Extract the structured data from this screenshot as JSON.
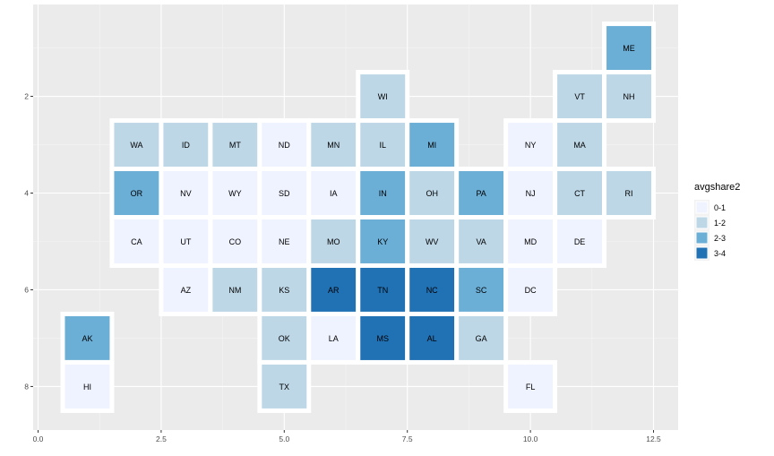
{
  "chart_data": {
    "type": "heatmap",
    "title": "",
    "xlabel": "",
    "ylabel": "",
    "xlim": [
      -0.1,
      13.0
    ],
    "ylim": [
      0.1,
      8.9
    ],
    "y_reversed": true,
    "x_ticks": [
      0.0,
      2.5,
      5.0,
      7.5,
      10.0,
      12.5
    ],
    "x_tick_labels": [
      "0.0",
      "2.5",
      "5.0",
      "7.5",
      "10.0",
      "12.5"
    ],
    "y_ticks": [
      2,
      4,
      6,
      8
    ],
    "y_tick_labels": [
      "2",
      "4",
      "6",
      "8"
    ],
    "grid": true,
    "legend": {
      "title": "avgshare2",
      "position": "right",
      "entries": [
        {
          "label": "0-1",
          "color": "#eff3ff"
        },
        {
          "label": "1-2",
          "color": "#bdd7e7"
        },
        {
          "label": "2-3",
          "color": "#6baed6"
        },
        {
          "label": "3-4",
          "color": "#2171b5"
        }
      ]
    },
    "tiles": [
      {
        "state": "ME",
        "x": 12,
        "y": 1,
        "category": "2-3"
      },
      {
        "state": "WI",
        "x": 7,
        "y": 2,
        "category": "1-2"
      },
      {
        "state": "VT",
        "x": 11,
        "y": 2,
        "category": "1-2"
      },
      {
        "state": "NH",
        "x": 12,
        "y": 2,
        "category": "1-2"
      },
      {
        "state": "WA",
        "x": 2,
        "y": 3,
        "category": "1-2"
      },
      {
        "state": "ID",
        "x": 3,
        "y": 3,
        "category": "1-2"
      },
      {
        "state": "MT",
        "x": 4,
        "y": 3,
        "category": "1-2"
      },
      {
        "state": "ND",
        "x": 5,
        "y": 3,
        "category": "0-1"
      },
      {
        "state": "MN",
        "x": 6,
        "y": 3,
        "category": "1-2"
      },
      {
        "state": "IL",
        "x": 7,
        "y": 3,
        "category": "1-2"
      },
      {
        "state": "MI",
        "x": 8,
        "y": 3,
        "category": "2-3"
      },
      {
        "state": "NY",
        "x": 10,
        "y": 3,
        "category": "0-1"
      },
      {
        "state": "MA",
        "x": 11,
        "y": 3,
        "category": "1-2"
      },
      {
        "state": "OR",
        "x": 2,
        "y": 4,
        "category": "2-3"
      },
      {
        "state": "NV",
        "x": 3,
        "y": 4,
        "category": "0-1"
      },
      {
        "state": "WY",
        "x": 4,
        "y": 4,
        "category": "0-1"
      },
      {
        "state": "SD",
        "x": 5,
        "y": 4,
        "category": "0-1"
      },
      {
        "state": "IA",
        "x": 6,
        "y": 4,
        "category": "0-1"
      },
      {
        "state": "IN",
        "x": 7,
        "y": 4,
        "category": "2-3"
      },
      {
        "state": "OH",
        "x": 8,
        "y": 4,
        "category": "1-2"
      },
      {
        "state": "PA",
        "x": 9,
        "y": 4,
        "category": "2-3"
      },
      {
        "state": "NJ",
        "x": 10,
        "y": 4,
        "category": "0-1"
      },
      {
        "state": "CT",
        "x": 11,
        "y": 4,
        "category": "1-2"
      },
      {
        "state": "RI",
        "x": 12,
        "y": 4,
        "category": "1-2"
      },
      {
        "state": "CA",
        "x": 2,
        "y": 5,
        "category": "0-1"
      },
      {
        "state": "UT",
        "x": 3,
        "y": 5,
        "category": "0-1"
      },
      {
        "state": "CO",
        "x": 4,
        "y": 5,
        "category": "0-1"
      },
      {
        "state": "NE",
        "x": 5,
        "y": 5,
        "category": "0-1"
      },
      {
        "state": "MO",
        "x": 6,
        "y": 5,
        "category": "1-2"
      },
      {
        "state": "KY",
        "x": 7,
        "y": 5,
        "category": "2-3"
      },
      {
        "state": "WV",
        "x": 8,
        "y": 5,
        "category": "1-2"
      },
      {
        "state": "VA",
        "x": 9,
        "y": 5,
        "category": "1-2"
      },
      {
        "state": "MD",
        "x": 10,
        "y": 5,
        "category": "0-1"
      },
      {
        "state": "DE",
        "x": 11,
        "y": 5,
        "category": "0-1"
      },
      {
        "state": "AZ",
        "x": 3,
        "y": 6,
        "category": "0-1"
      },
      {
        "state": "NM",
        "x": 4,
        "y": 6,
        "category": "1-2"
      },
      {
        "state": "KS",
        "x": 5,
        "y": 6,
        "category": "1-2"
      },
      {
        "state": "AR",
        "x": 6,
        "y": 6,
        "category": "3-4"
      },
      {
        "state": "TN",
        "x": 7,
        "y": 6,
        "category": "3-4"
      },
      {
        "state": "NC",
        "x": 8,
        "y": 6,
        "category": "3-4"
      },
      {
        "state": "SC",
        "x": 9,
        "y": 6,
        "category": "2-3"
      },
      {
        "state": "DC",
        "x": 10,
        "y": 6,
        "category": "0-1"
      },
      {
        "state": "AK",
        "x": 1,
        "y": 7,
        "category": "2-3"
      },
      {
        "state": "OK",
        "x": 5,
        "y": 7,
        "category": "1-2"
      },
      {
        "state": "LA",
        "x": 6,
        "y": 7,
        "category": "0-1"
      },
      {
        "state": "MS",
        "x": 7,
        "y": 7,
        "category": "3-4"
      },
      {
        "state": "AL",
        "x": 8,
        "y": 7,
        "category": "3-4"
      },
      {
        "state": "GA",
        "x": 9,
        "y": 7,
        "category": "1-2"
      },
      {
        "state": "HI",
        "x": 1,
        "y": 8,
        "category": "0-1"
      },
      {
        "state": "TX",
        "x": 5,
        "y": 8,
        "category": "1-2"
      },
      {
        "state": "FL",
        "x": 10,
        "y": 8,
        "category": "0-1"
      }
    ]
  }
}
